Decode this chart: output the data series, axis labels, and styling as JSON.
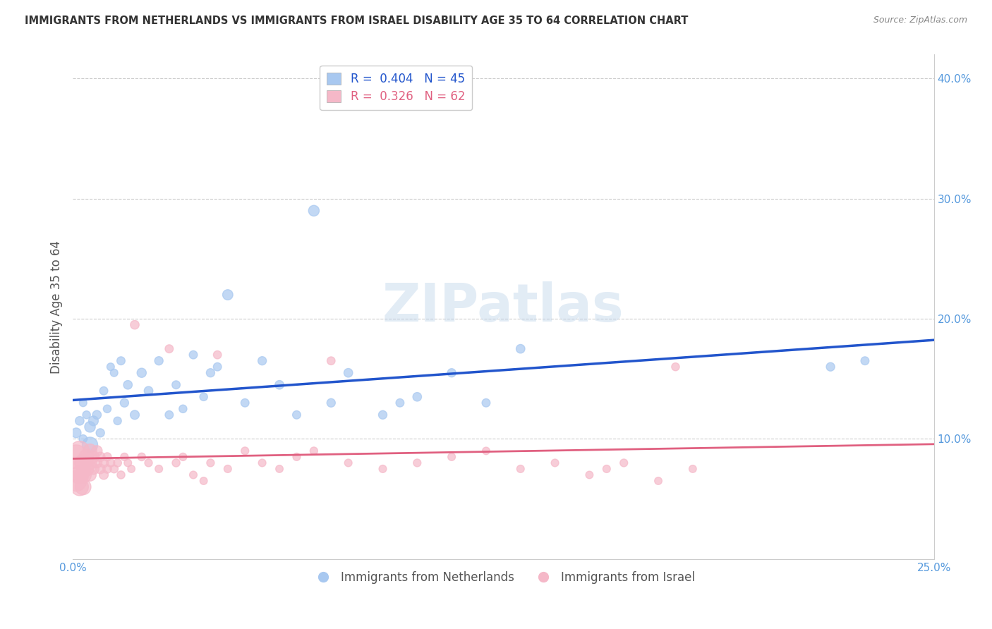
{
  "title": "IMMIGRANTS FROM NETHERLANDS VS IMMIGRANTS FROM ISRAEL DISABILITY AGE 35 TO 64 CORRELATION CHART",
  "source": "Source: ZipAtlas.com",
  "ylabel": "Disability Age 35 to 64",
  "xlim": [
    0.0,
    0.25
  ],
  "ylim": [
    0.0,
    0.42
  ],
  "xticks": [
    0.0,
    0.05,
    0.1,
    0.15,
    0.2,
    0.25
  ],
  "xticklabels": [
    "0.0%",
    "",
    "",
    "",
    "",
    "25.0%"
  ],
  "yticks": [
    0.1,
    0.2,
    0.3,
    0.4
  ],
  "yticklabels": [
    "10.0%",
    "20.0%",
    "30.0%",
    "40.0%"
  ],
  "legend_blue_r": "0.404",
  "legend_blue_n": "45",
  "legend_pink_r": "0.326",
  "legend_pink_n": "62",
  "blue_color": "#a8c8f0",
  "pink_color": "#f5b8c8",
  "blue_line_color": "#2255cc",
  "pink_line_color": "#e06080",
  "grid_color": "#cccccc",
  "title_color": "#333333",
  "axis_label_color": "#555555",
  "tick_color": "#5599dd",
  "watermark": "ZIPatlas",
  "netherlands_x": [
    0.001,
    0.002,
    0.003,
    0.003,
    0.004,
    0.005,
    0.005,
    0.006,
    0.007,
    0.008,
    0.009,
    0.01,
    0.011,
    0.012,
    0.013,
    0.014,
    0.015,
    0.016,
    0.018,
    0.02,
    0.022,
    0.025,
    0.028,
    0.03,
    0.032,
    0.035,
    0.038,
    0.04,
    0.042,
    0.045,
    0.05,
    0.055,
    0.06,
    0.065,
    0.07,
    0.075,
    0.08,
    0.09,
    0.095,
    0.1,
    0.11,
    0.12,
    0.13,
    0.22,
    0.23
  ],
  "netherlands_y": [
    0.105,
    0.115,
    0.1,
    0.13,
    0.12,
    0.095,
    0.11,
    0.115,
    0.12,
    0.105,
    0.14,
    0.125,
    0.16,
    0.155,
    0.115,
    0.165,
    0.13,
    0.145,
    0.12,
    0.155,
    0.14,
    0.165,
    0.12,
    0.145,
    0.125,
    0.17,
    0.135,
    0.155,
    0.16,
    0.22,
    0.13,
    0.165,
    0.145,
    0.12,
    0.29,
    0.13,
    0.155,
    0.12,
    0.13,
    0.135,
    0.155,
    0.13,
    0.175,
    0.16,
    0.165
  ],
  "netherlands_sizes": [
    100,
    80,
    70,
    60,
    65,
    250,
    120,
    100,
    80,
    75,
    70,
    65,
    60,
    60,
    65,
    70,
    75,
    80,
    85,
    90,
    80,
    75,
    70,
    70,
    65,
    70,
    65,
    75,
    70,
    110,
    70,
    75,
    80,
    70,
    120,
    75,
    80,
    75,
    70,
    80,
    75,
    70,
    80,
    75,
    70
  ],
  "israel_x": [
    0.001,
    0.001,
    0.001,
    0.002,
    0.002,
    0.002,
    0.003,
    0.003,
    0.003,
    0.004,
    0.004,
    0.005,
    0.005,
    0.005,
    0.006,
    0.006,
    0.007,
    0.007,
    0.008,
    0.008,
    0.009,
    0.009,
    0.01,
    0.01,
    0.011,
    0.012,
    0.013,
    0.014,
    0.015,
    0.016,
    0.017,
    0.018,
    0.02,
    0.022,
    0.025,
    0.028,
    0.03,
    0.032,
    0.035,
    0.038,
    0.04,
    0.042,
    0.045,
    0.05,
    0.055,
    0.06,
    0.065,
    0.07,
    0.075,
    0.08,
    0.09,
    0.1,
    0.11,
    0.12,
    0.13,
    0.14,
    0.15,
    0.155,
    0.16,
    0.17,
    0.175,
    0.18
  ],
  "israel_y": [
    0.085,
    0.075,
    0.065,
    0.09,
    0.07,
    0.06,
    0.08,
    0.07,
    0.06,
    0.085,
    0.075,
    0.09,
    0.08,
    0.07,
    0.085,
    0.075,
    0.09,
    0.08,
    0.075,
    0.085,
    0.08,
    0.07,
    0.075,
    0.085,
    0.08,
    0.075,
    0.08,
    0.07,
    0.085,
    0.08,
    0.075,
    0.195,
    0.085,
    0.08,
    0.075,
    0.175,
    0.08,
    0.085,
    0.07,
    0.065,
    0.08,
    0.17,
    0.075,
    0.09,
    0.08,
    0.075,
    0.085,
    0.09,
    0.165,
    0.08,
    0.075,
    0.08,
    0.085,
    0.09,
    0.075,
    0.08,
    0.07,
    0.075,
    0.08,
    0.065,
    0.16,
    0.075
  ],
  "israel_sizes": [
    600,
    500,
    450,
    400,
    350,
    320,
    300,
    280,
    260,
    240,
    220,
    200,
    180,
    160,
    140,
    130,
    120,
    110,
    100,
    95,
    90,
    85,
    80,
    75,
    72,
    70,
    68,
    65,
    62,
    60,
    58,
    80,
    65,
    62,
    60,
    70,
    65,
    62,
    60,
    58,
    62,
    68,
    60,
    62,
    60,
    58,
    60,
    62,
    68,
    60,
    60,
    62,
    60,
    58,
    60,
    60,
    58,
    60,
    62,
    58,
    65,
    58
  ]
}
